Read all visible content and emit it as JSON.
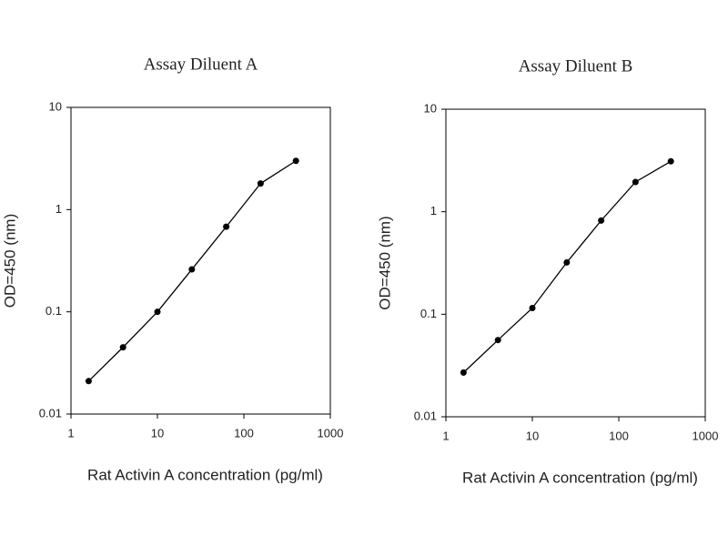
{
  "chart_data": [
    {
      "type": "line",
      "title": "Assay Diluent A",
      "xlabel": "Rat Activin A concentration (pg/ml)",
      "ylabel": "OD=450 (nm)",
      "x": [
        1.6,
        4,
        10,
        25,
        62.5,
        156,
        400
      ],
      "series": [
        {
          "color": "#000000",
          "values": [
            0.021,
            0.045,
            0.1,
            0.26,
            0.68,
            1.8,
            3.0
          ]
        }
      ],
      "xscale": "log",
      "yscale": "log",
      "xlim": [
        1,
        1000
      ],
      "ylim": [
        0.01,
        10
      ],
      "xticks": [
        1,
        10,
        100,
        1000
      ],
      "yticks": [
        0.01,
        0.1,
        1,
        10
      ]
    },
    {
      "type": "line",
      "title": "Assay Diluent B",
      "xlabel": "Rat Activin A concentration (pg/ml)",
      "ylabel": "OD=450 (nm)",
      "x": [
        1.6,
        4,
        10,
        25,
        62.5,
        156,
        400
      ],
      "series": [
        {
          "color": "#000000",
          "values": [
            0.027,
            0.056,
            0.115,
            0.32,
            0.82,
            1.95,
            3.1
          ]
        }
      ],
      "xscale": "log",
      "yscale": "log",
      "xlim": [
        1,
        1000
      ],
      "ylim": [
        0.01,
        10
      ],
      "xticks": [
        1,
        10,
        100,
        1000
      ],
      "yticks": [
        0.01,
        0.1,
        1,
        10
      ]
    }
  ]
}
